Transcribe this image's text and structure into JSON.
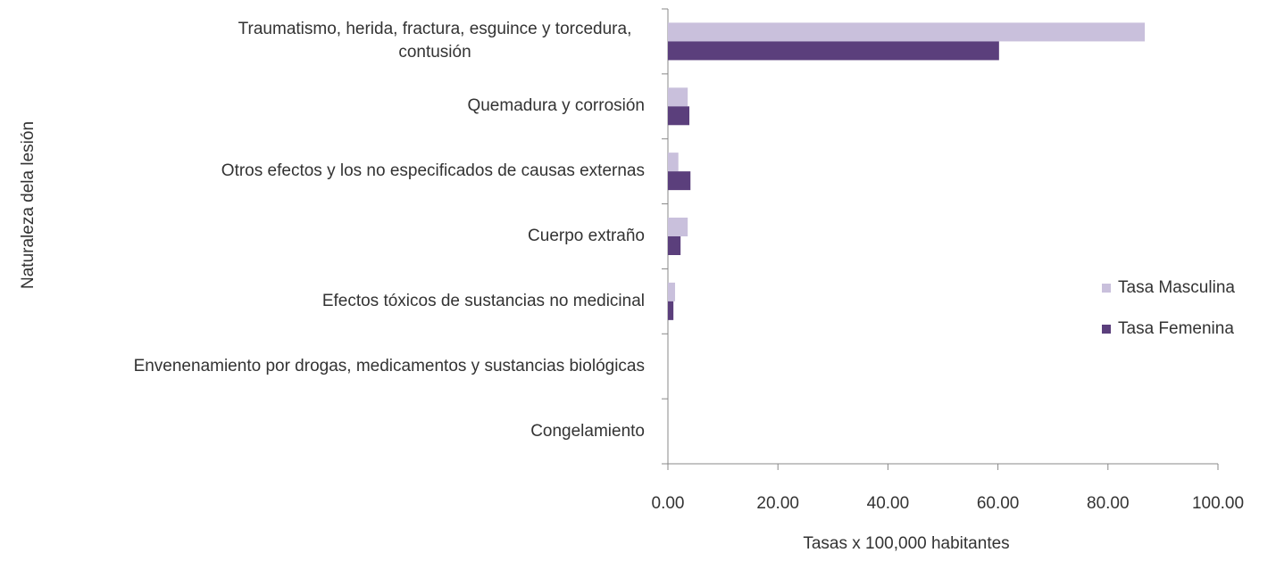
{
  "chart_data": {
    "type": "hbar",
    "x_label": "Tasas x 100,000 habitantes",
    "y_label": "Naturaleza dela lesión",
    "categories": [
      "Traumatismo, herida, fractura, esguince y torcedura, contusión",
      "Quemadura y corrosión",
      "Otros efectos y los no especificados de causas externas",
      "Cuerpo extraño",
      "Efectos tóxicos de sustancias no medicinal",
      "Envenenamiento por drogas, medicamentos y sustancias biológicas",
      "Congelamiento"
    ],
    "series": [
      {
        "name": "Tasa Masculina",
        "color": "#c9c0dc",
        "values": [
          86.7,
          3.6,
          1.9,
          3.6,
          1.3,
          0,
          0
        ]
      },
      {
        "name": "Tasa Femenina",
        "color": "#5b3f7c",
        "values": [
          60.2,
          3.9,
          4.1,
          2.3,
          1.0,
          0,
          0
        ]
      }
    ],
    "xlim": [
      0,
      100
    ],
    "xticks": [
      {
        "value": 0,
        "label": "0.00"
      },
      {
        "value": 20,
        "label": "20.00"
      },
      {
        "value": 40,
        "label": "40.00"
      },
      {
        "value": 60,
        "label": "60.00"
      },
      {
        "value": 80,
        "label": "80.00"
      },
      {
        "value": 100,
        "label": "100.00"
      }
    ],
    "legend": "right"
  }
}
